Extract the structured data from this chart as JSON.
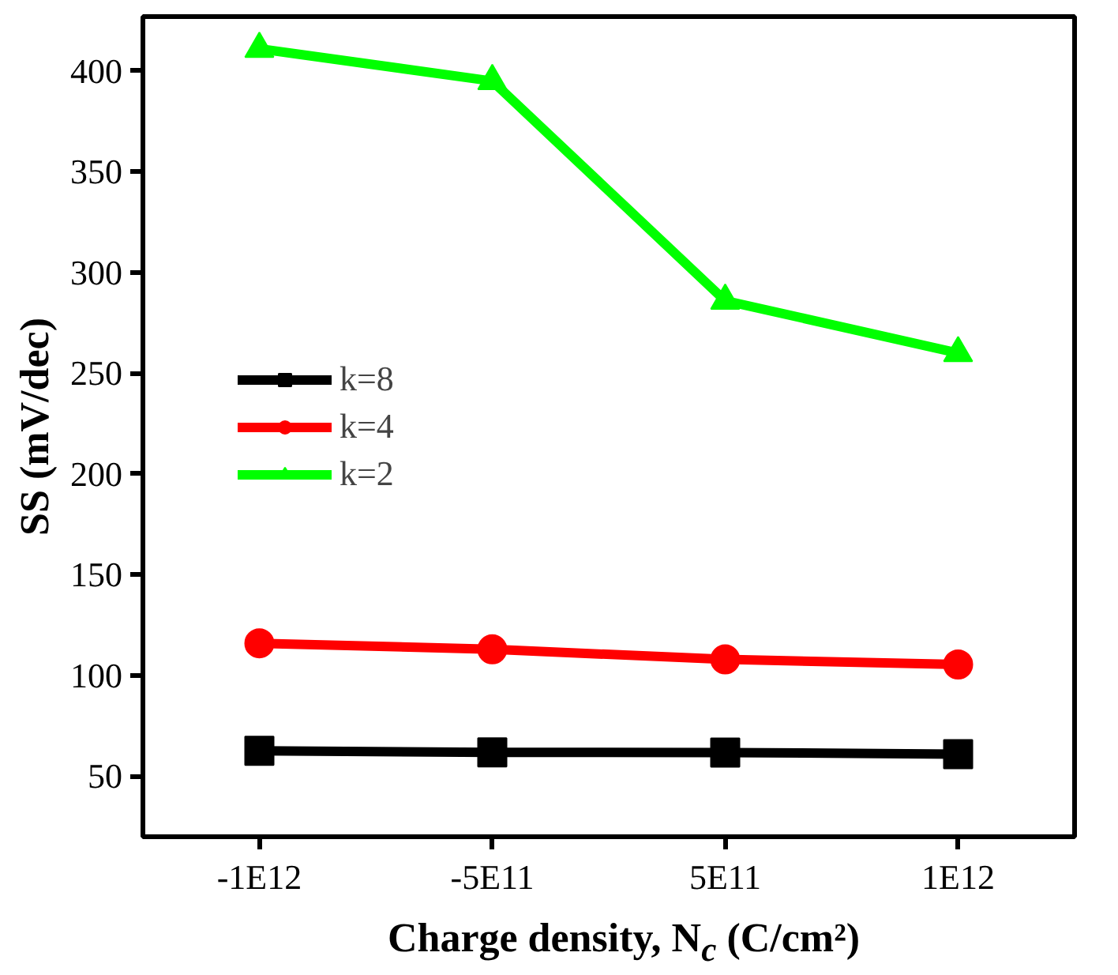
{
  "chart_data": {
    "type": "line",
    "xlabel": "Charge density, N$_{c}$ (C/cm²)",
    "ylabel": "SS (mV/dec)",
    "categories": [
      "-1E12",
      "-5E11",
      "5E11",
      "1E12"
    ],
    "ylim": [
      20,
      427
    ],
    "yticks": [
      50,
      100,
      150,
      200,
      250,
      300,
      350,
      400
    ],
    "grid": false,
    "legend": "left",
    "series": [
      {
        "name": "k=8",
        "color": "#000000",
        "marker": "square",
        "values": [
          62.6,
          61.9,
          61.8,
          61
        ]
      },
      {
        "name": "k=4",
        "color": "#ff0000",
        "marker": "circle",
        "values": [
          116,
          113,
          108,
          105.5
        ]
      },
      {
        "name": "k=2",
        "color": "#00ff00",
        "marker": "triangle",
        "values": [
          411,
          395,
          286,
          260
        ]
      }
    ]
  }
}
